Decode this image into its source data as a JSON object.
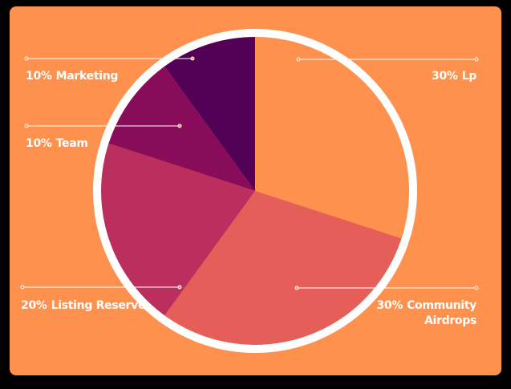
{
  "chart_data": {
    "type": "pie",
    "categories": [
      "Lp",
      "Community Airdrops",
      "Listing Reserve",
      "Team",
      "Marketing"
    ],
    "values": [
      30,
      30,
      20,
      10,
      10
    ],
    "value_labels": [
      "30%",
      "30%",
      "20%",
      "10%",
      "10%"
    ],
    "colors": [
      "#fe914d",
      "#e55e5a",
      "#bb2f5e",
      "#890c5a",
      "#530157"
    ]
  }
}
